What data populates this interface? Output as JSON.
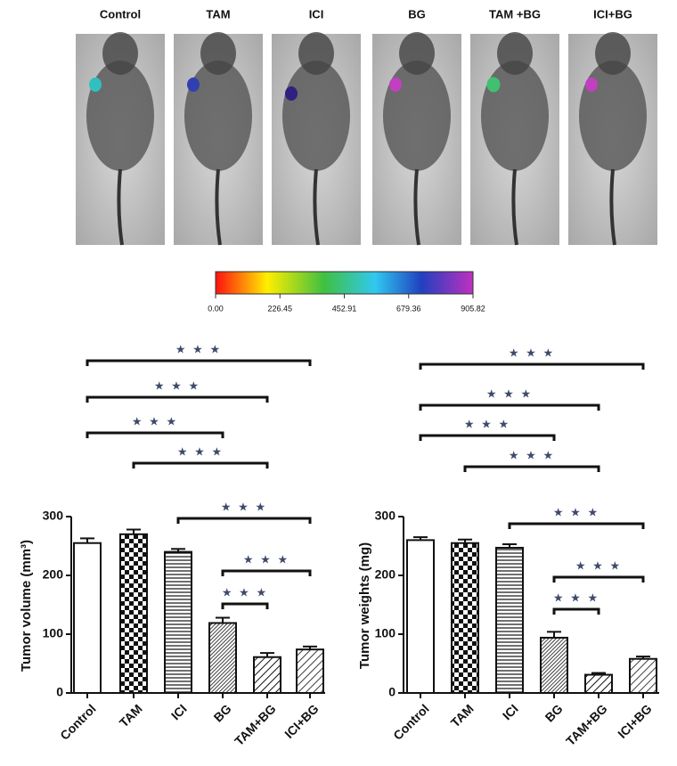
{
  "image_panel": {
    "labels": [
      "Control",
      "TAM",
      "ICI",
      "BG",
      "TAM +BG",
      "ICI+BG"
    ]
  },
  "colorbar": {
    "lim": [
      0,
      905.82
    ],
    "ticks": [
      {
        "value": 0,
        "label": "0.00"
      },
      226.45,
      452.91,
      679.36,
      905.82
    ]
  },
  "chart_data": [
    {
      "type": "bar",
      "y_label": "Tumor volume (mm³)",
      "categories": [
        "Control",
        "TAM",
        "ICI",
        "BG",
        "TAM+BG",
        "ICI+BG"
      ],
      "values": [
        255,
        270,
        240,
        119,
        61,
        74
      ],
      "errors": [
        8,
        8,
        5,
        9,
        7,
        5
      ],
      "ylim": [
        0,
        300
      ],
      "yticks": [
        0,
        100,
        200,
        300
      ],
      "comparisons": [
        {
          "between": [
            "Control",
            "ICI+BG"
          ],
          "label": "★ ★ ★"
        },
        {
          "between": [
            "Control",
            "TAM+BG"
          ],
          "label": "★ ★ ★"
        },
        {
          "between": [
            "Control",
            "BG"
          ],
          "label": "★ ★ ★"
        },
        {
          "between": [
            "TAM",
            "TAM+BG"
          ],
          "label": "★ ★ ★"
        },
        {
          "between": [
            "ICI",
            "ICI+BG"
          ],
          "label": "★ ★ ★"
        },
        {
          "between": [
            "BG",
            "ICI+BG"
          ],
          "label": "★ ★ ★"
        },
        {
          "between": [
            "BG",
            "TAM+BG"
          ],
          "label": "★ ★ ★"
        }
      ]
    },
    {
      "type": "bar",
      "y_label": "Tumor weights (mg)",
      "categories": [
        "Control",
        "TAM",
        "ICI",
        "BG",
        "TAM+BG",
        "ICI+BG"
      ],
      "values": [
        260,
        255,
        247,
        94,
        31,
        58
      ],
      "errors": [
        5,
        6,
        6,
        10,
        3,
        4
      ],
      "ylim": [
        0,
        300
      ],
      "yticks": [
        0,
        100,
        200,
        300
      ],
      "comparisons": [
        {
          "between": [
            "Control",
            "ICI+BG"
          ],
          "label": "★ ★ ★"
        },
        {
          "between": [
            "Control",
            "TAM+BG"
          ],
          "label": "★ ★ ★"
        },
        {
          "between": [
            "Control",
            "BG"
          ],
          "label": "★ ★ ★"
        },
        {
          "between": [
            "TAM",
            "TAM+BG"
          ],
          "label": "★ ★ ★"
        },
        {
          "between": [
            "ICI",
            "ICI+BG"
          ],
          "label": "★ ★ ★"
        },
        {
          "between": [
            "BG",
            "ICI+BG"
          ],
          "label": "★ ★ ★"
        },
        {
          "between": [
            "BG",
            "TAM+BG"
          ],
          "label": "★ ★ ★"
        }
      ]
    }
  ]
}
